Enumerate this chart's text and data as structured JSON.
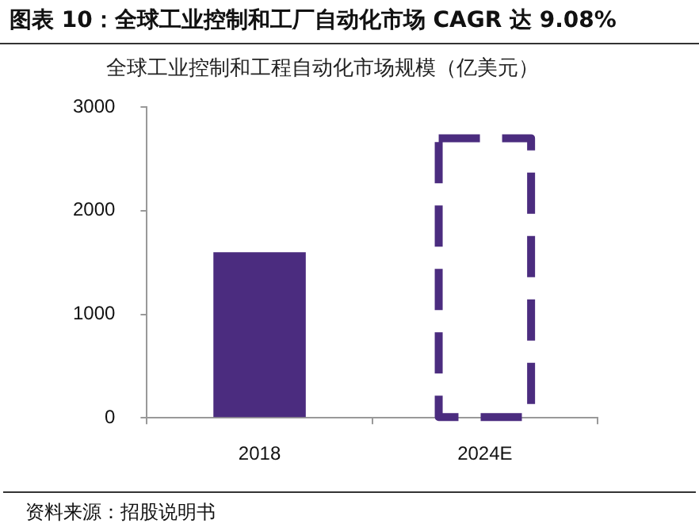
{
  "chart_data": {
    "type": "bar",
    "title": "图表 10：全球工业控制和工厂自动化市场 CAGR 达 9.08%",
    "subtitle": "全球工业控制和工程自动化市场规模（亿美元）",
    "annotations": [
      "资料来源：招股说明书"
    ],
    "categories": [
      "2018",
      "2024E"
    ],
    "series": [
      {
        "color": "#4b2c7f",
        "values": [
          1600,
          null
        ],
        "line_style": "solid"
      },
      {
        "color": "#4b2c7f",
        "values": [
          null,
          2700
        ],
        "line_style": "dashed"
      }
    ],
    "ylim": [
      0,
      3000
    ],
    "yticks": [
      0,
      1000,
      2000,
      3000
    ],
    "grid": false,
    "legend": false
  }
}
